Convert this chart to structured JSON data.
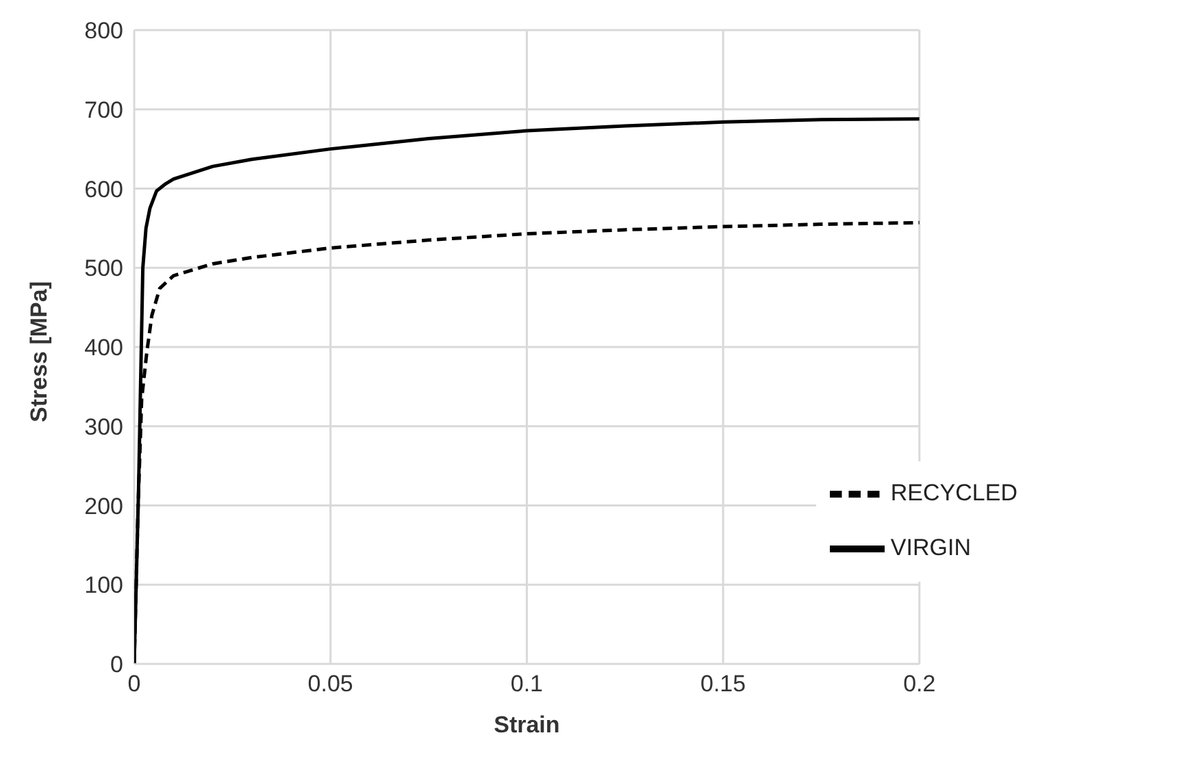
{
  "chart_data": {
    "type": "line",
    "xlabel": "Strain",
    "ylabel": "Stress [MPa]",
    "xlim": [
      0,
      0.2
    ],
    "xticks": [
      0,
      0.05,
      0.1,
      0.15,
      0.2
    ],
    "ylim": [
      0,
      800
    ],
    "yticks": [
      0,
      100,
      200,
      300,
      400,
      500,
      600,
      700,
      800
    ],
    "grid": true,
    "legend": "bottom right",
    "marker": "none",
    "series": [
      {
        "name": "RECYCLED",
        "color": "#000000",
        "line_style": "dashed",
        "x": [
          0,
          0.001,
          0.0019,
          0.0032,
          0.0045,
          0.0065,
          0.01,
          0.02,
          0.03,
          0.05,
          0.075,
          0.1,
          0.125,
          0.15,
          0.175,
          0.2
        ],
        "values": [
          0,
          200,
          334,
          393,
          440,
          474,
          490,
          505,
          513,
          525,
          535,
          543,
          548,
          552,
          555,
          557
        ]
      },
      {
        "name": "VIRGIN",
        "color": "#000000",
        "line_style": "solid",
        "x": [
          0,
          0.0011,
          0.0022,
          0.003,
          0.004,
          0.0057,
          0.008,
          0.01,
          0.02,
          0.03,
          0.05,
          0.075,
          0.1,
          0.125,
          0.15,
          0.175,
          0.2
        ],
        "values": [
          0,
          218,
          500,
          550,
          575,
          597,
          606,
          612,
          628,
          637,
          650,
          663,
          673,
          679,
          684,
          687,
          688
        ]
      }
    ]
  }
}
